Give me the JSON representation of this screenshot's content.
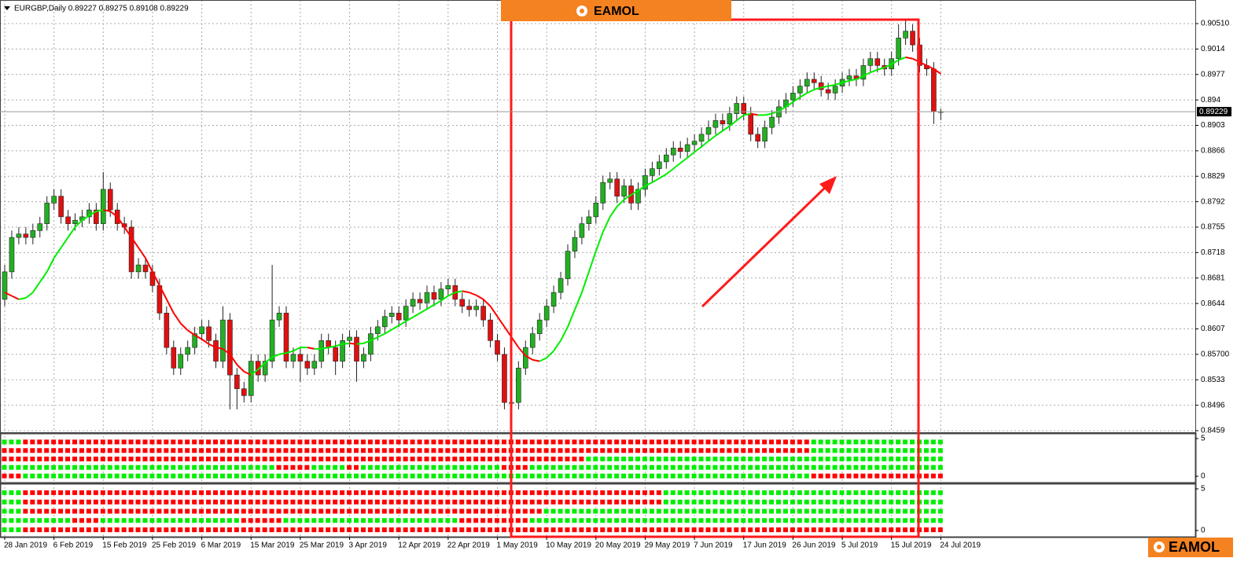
{
  "chart_data": {
    "type": "candlestick",
    "title": "EURGBP,Daily 0.89227 0.89275 0.89108 0.89229",
    "logo_top": "EAMOL",
    "logo_bottom": "EAMOL",
    "categories": [
      "28 Jan 2019",
      null,
      null,
      null,
      null,
      null,
      null,
      "6 Feb 2019",
      null,
      null,
      null,
      null,
      null,
      null,
      "15 Feb 2019",
      null,
      null,
      null,
      null,
      null,
      null,
      "25 Feb 2019",
      null,
      null,
      null,
      null,
      null,
      null,
      "6 Mar 2019",
      null,
      null,
      null,
      null,
      null,
      null,
      "15 Mar 2019",
      null,
      null,
      null,
      null,
      null,
      null,
      "25 Mar 2019",
      null,
      null,
      null,
      null,
      null,
      null,
      "3 Apr 2019",
      null,
      null,
      null,
      null,
      null,
      null,
      "12 Apr 2019",
      null,
      null,
      null,
      null,
      null,
      null,
      "22 Apr 2019",
      null,
      null,
      null,
      null,
      null,
      null,
      "1 May 2019",
      null,
      null,
      null,
      null,
      null,
      null,
      "10 May 2019",
      null,
      null,
      null,
      null,
      null,
      null,
      "20 May 2019",
      null,
      null,
      null,
      null,
      null,
      null,
      "29 May 2019",
      null,
      null,
      null,
      null,
      null,
      null,
      "7 Jun 2019",
      null,
      null,
      null,
      null,
      null,
      null,
      "17 Jun 2019",
      null,
      null,
      null,
      null,
      null,
      null,
      "26 Jun 2019",
      null,
      null,
      null,
      null,
      null,
      null,
      "5 Jul 2019",
      null,
      null,
      null,
      null,
      null,
      null,
      "15 Jul 2019",
      null,
      null,
      null,
      null,
      null,
      null,
      "24 Jul 2019"
    ],
    "open": [
      0.865,
      0.869,
      0.874,
      0.8745,
      0.874,
      0.875,
      0.876,
      0.879,
      0.88,
      0.877,
      0.876,
      0.8765,
      0.877,
      0.878,
      0.876,
      0.881,
      0.878,
      0.876,
      0.8755,
      0.869,
      0.87,
      0.869,
      0.867,
      0.863,
      0.858,
      0.855,
      0.857,
      0.858,
      0.86,
      0.861,
      0.859,
      0.856,
      0.862,
      0.854,
      0.852,
      0.851,
      0.856,
      0.854,
      0.856,
      0.862,
      0.863,
      0.856,
      0.857,
      0.856,
      0.855,
      0.856,
      0.859,
      0.858,
      0.856,
      0.859,
      0.8595,
      0.856,
      0.857,
      0.86,
      0.861,
      0.8625,
      0.863,
      0.862,
      0.864,
      0.865,
      0.8645,
      0.866,
      0.865,
      0.8665,
      0.867,
      0.865,
      0.864,
      0.8635,
      0.864,
      0.862,
      0.859,
      0.857,
      0.85,
      0.85,
      0.855,
      0.858,
      0.86,
      0.862,
      0.864,
      0.866,
      0.868,
      0.872,
      0.874,
      0.876,
      0.877,
      0.879,
      0.882,
      0.8825,
      0.88,
      0.8815,
      0.879,
      0.881,
      0.883,
      0.884,
      0.885,
      0.886,
      0.887,
      0.8865,
      0.8875,
      0.888,
      0.889,
      0.89,
      0.891,
      0.8905,
      0.892,
      0.8935,
      0.892,
      0.889,
      0.888,
      0.89,
      0.8915,
      0.893,
      0.894,
      0.895,
      0.896,
      0.897,
      0.8965,
      0.8955,
      0.895,
      0.896,
      0.897,
      0.8975,
      0.897,
      0.899,
      0.9,
      0.899,
      0.8985,
      0.9,
      0.903,
      0.904,
      0.902,
      0.899,
      0.8985,
      0.89227
    ],
    "high": [
      0.87,
      0.875,
      0.8755,
      0.8755,
      0.876,
      0.877,
      0.88,
      0.881,
      0.881,
      0.878,
      0.8775,
      0.878,
      0.879,
      0.879,
      0.8835,
      0.882,
      0.879,
      0.877,
      0.8765,
      0.871,
      0.871,
      0.87,
      0.868,
      0.864,
      0.859,
      0.858,
      0.859,
      0.861,
      0.862,
      0.862,
      0.86,
      0.864,
      0.863,
      0.855,
      0.853,
      0.857,
      0.857,
      0.857,
      0.87,
      0.864,
      0.864,
      0.858,
      0.858,
      0.857,
      0.857,
      0.86,
      0.86,
      0.859,
      0.86,
      0.8605,
      0.8605,
      0.858,
      0.861,
      0.862,
      0.8635,
      0.864,
      0.864,
      0.865,
      0.866,
      0.866,
      0.867,
      0.867,
      0.8675,
      0.868,
      0.868,
      0.866,
      0.865,
      0.865,
      0.865,
      0.863,
      0.86,
      0.858,
      0.851,
      0.856,
      0.859,
      0.861,
      0.863,
      0.865,
      0.867,
      0.869,
      0.873,
      0.875,
      0.877,
      0.878,
      0.88,
      0.883,
      0.8835,
      0.8835,
      0.8825,
      0.8825,
      0.882,
      0.884,
      0.885,
      0.886,
      0.887,
      0.888,
      0.888,
      0.8885,
      0.889,
      0.89,
      0.891,
      0.892,
      0.892,
      0.893,
      0.8945,
      0.8945,
      0.893,
      0.89,
      0.891,
      0.8925,
      0.894,
      0.895,
      0.896,
      0.897,
      0.898,
      0.898,
      0.8975,
      0.8965,
      0.897,
      0.898,
      0.8985,
      0.8985,
      0.9,
      0.901,
      0.901,
      0.9,
      0.901,
      0.905,
      0.9055,
      0.905,
      0.903,
      0.9,
      0.8995,
      0.89275
    ],
    "low": [
      0.864,
      0.868,
      0.873,
      0.873,
      0.873,
      0.874,
      0.875,
      0.878,
      0.876,
      0.875,
      0.875,
      0.8755,
      0.876,
      0.875,
      0.875,
      0.877,
      0.875,
      0.8745,
      0.868,
      0.868,
      0.868,
      0.866,
      0.862,
      0.857,
      0.854,
      0.854,
      0.856,
      0.857,
      0.859,
      0.858,
      0.855,
      0.855,
      0.849,
      0.849,
      0.85,
      0.85,
      0.853,
      0.853,
      0.855,
      0.861,
      0.855,
      0.855,
      0.853,
      0.854,
      0.854,
      0.855,
      0.857,
      0.854,
      0.855,
      0.858,
      0.853,
      0.855,
      0.856,
      0.859,
      0.86,
      0.8615,
      0.861,
      0.861,
      0.863,
      0.8635,
      0.8635,
      0.864,
      0.864,
      0.8655,
      0.864,
      0.863,
      0.8625,
      0.8625,
      0.861,
      0.858,
      0.856,
      0.849,
      0.849,
      0.849,
      0.854,
      0.857,
      0.859,
      0.861,
      0.863,
      0.865,
      0.867,
      0.871,
      0.873,
      0.875,
      0.876,
      0.878,
      0.881,
      0.879,
      0.879,
      0.878,
      0.878,
      0.88,
      0.882,
      0.883,
      0.884,
      0.885,
      0.8855,
      0.8855,
      0.8865,
      0.887,
      0.888,
      0.889,
      0.8895,
      0.8895,
      0.891,
      0.891,
      0.888,
      0.887,
      0.887,
      0.889,
      0.8905,
      0.892,
      0.893,
      0.894,
      0.895,
      0.8955,
      0.8945,
      0.894,
      0.894,
      0.895,
      0.896,
      0.896,
      0.896,
      0.898,
      0.898,
      0.8975,
      0.8975,
      0.899,
      0.902,
      0.901,
      0.898,
      0.8975,
      0.8905,
      0.89108
    ],
    "close": [
      0.869,
      0.874,
      0.8745,
      0.874,
      0.875,
      0.876,
      0.879,
      0.88,
      0.877,
      0.876,
      0.8765,
      0.877,
      0.878,
      0.876,
      0.881,
      0.878,
      0.876,
      0.8755,
      0.869,
      0.87,
      0.869,
      0.867,
      0.863,
      0.858,
      0.855,
      0.857,
      0.858,
      0.86,
      0.861,
      0.859,
      0.856,
      0.862,
      0.854,
      0.852,
      0.851,
      0.856,
      0.854,
      0.856,
      0.862,
      0.863,
      0.856,
      0.857,
      0.856,
      0.855,
      0.856,
      0.859,
      0.858,
      0.856,
      0.859,
      0.8595,
      0.856,
      0.857,
      0.86,
      0.861,
      0.8625,
      0.863,
      0.862,
      0.864,
      0.865,
      0.8645,
      0.866,
      0.865,
      0.8665,
      0.867,
      0.865,
      0.864,
      0.8635,
      0.864,
      0.862,
      0.859,
      0.857,
      0.85,
      0.85,
      0.855,
      0.858,
      0.86,
      0.862,
      0.864,
      0.866,
      0.868,
      0.872,
      0.874,
      0.876,
      0.877,
      0.879,
      0.882,
      0.8825,
      0.88,
      0.8815,
      0.879,
      0.881,
      0.883,
      0.884,
      0.885,
      0.886,
      0.887,
      0.8865,
      0.8875,
      0.888,
      0.889,
      0.89,
      0.891,
      0.8905,
      0.892,
      0.8935,
      0.892,
      0.889,
      0.888,
      0.89,
      0.8915,
      0.893,
      0.894,
      0.895,
      0.896,
      0.897,
      0.8965,
      0.8955,
      0.895,
      0.896,
      0.897,
      0.8975,
      0.897,
      0.899,
      0.9,
      0.899,
      0.8985,
      0.9,
      0.903,
      0.904,
      0.902,
      0.899,
      0.8985,
      0.8923,
      0.89229
    ],
    "bull_color": "#22b022",
    "bear_color": "#e01010",
    "ma": {
      "up_color": "#00ee00",
      "down_color": "#ff0000",
      "values": [
        0.866,
        0.8655,
        0.865,
        0.8652,
        0.866,
        0.8675,
        0.869,
        0.871,
        0.8725,
        0.874,
        0.8755,
        0.8765,
        0.8772,
        0.8778,
        0.878,
        0.8778,
        0.877,
        0.8755,
        0.874,
        0.8725,
        0.871,
        0.869,
        0.867,
        0.865,
        0.863,
        0.8615,
        0.8605,
        0.8598,
        0.8592,
        0.8585,
        0.858,
        0.8578,
        0.857,
        0.8555,
        0.8545,
        0.854,
        0.8548,
        0.8558,
        0.8566,
        0.857,
        0.8572,
        0.8575,
        0.858,
        0.858,
        0.8578,
        0.8578,
        0.858,
        0.8582,
        0.8585,
        0.8586,
        0.8585,
        0.8586,
        0.859,
        0.8595,
        0.86,
        0.8606,
        0.8612,
        0.8618,
        0.8624,
        0.863,
        0.8636,
        0.8642,
        0.8648,
        0.8655,
        0.866,
        0.8662,
        0.866,
        0.8656,
        0.865,
        0.864,
        0.8625,
        0.861,
        0.8595,
        0.858,
        0.8568,
        0.8562,
        0.856,
        0.8565,
        0.8575,
        0.859,
        0.861,
        0.8635,
        0.866,
        0.869,
        0.872,
        0.8748,
        0.877,
        0.8785,
        0.8795,
        0.8802,
        0.8808,
        0.8815,
        0.882,
        0.8826,
        0.8832,
        0.884,
        0.8848,
        0.8856,
        0.8864,
        0.8872,
        0.888,
        0.8888,
        0.8895,
        0.8902,
        0.891,
        0.8918,
        0.892,
        0.8918,
        0.8918,
        0.892,
        0.8924,
        0.893,
        0.8937,
        0.8944,
        0.895,
        0.8955,
        0.8958,
        0.896,
        0.8962,
        0.8965,
        0.8968,
        0.897,
        0.8975,
        0.898,
        0.8984,
        0.8987,
        0.8992,
        0.8998,
        0.9002,
        0.9,
        0.8995,
        0.899,
        0.8985,
        0.8978
      ]
    },
    "ylim": [
      0.84567,
      0.90853
    ],
    "yticks": [
      {
        "value": 0.9051,
        "label": "0.90510"
      },
      0.9014,
      0.8977,
      0.894,
      0.8903,
      0.8866,
      0.8829,
      0.8792,
      0.8755,
      0.8718,
      0.8681,
      0.8644,
      0.8607,
      {
        "value": 0.857,
        "label": "0.85700"
      },
      0.8533,
      0.8496,
      0.8459
    ],
    "current_price": 0.89229,
    "grid": true,
    "panels": [
      {
        "ylim": [
          0,
          5
        ],
        "yticks": [
          0,
          5
        ],
        "rows": [
          [
            {
              "color": "#00ee00",
              "count": 3
            },
            {
              "color": "#ff0000",
              "count": 112
            },
            {
              "color": "#00ee00",
              "count": 19
            }
          ],
          [
            {
              "color": "#ff0000",
              "count": 115
            },
            {
              "color": "#00ee00",
              "count": 19
            }
          ],
          [
            {
              "color": "#ff0000",
              "count": 83
            },
            {
              "color": "#00ee00",
              "count": 51
            }
          ],
          [
            {
              "color": "#00ee00",
              "count": 39
            },
            {
              "color": "#ff0000",
              "count": 5
            },
            {
              "color": "#00ee00",
              "count": 5
            },
            {
              "color": "#ff0000",
              "count": 2
            },
            {
              "color": "#00ee00",
              "count": 20
            },
            {
              "color": "#ff0000",
              "count": 4
            },
            {
              "color": "#00ee00",
              "count": 59
            }
          ],
          [
            {
              "color": "#ff0000",
              "count": 3
            },
            {
              "color": "#00ee00",
              "count": 112
            },
            {
              "color": "#ff0000",
              "count": 19
            }
          ]
        ]
      },
      {
        "ylim": [
          0,
          5
        ],
        "yticks": [
          0,
          5
        ],
        "rows": [
          [
            {
              "color": "#00ee00",
              "count": 3
            },
            {
              "color": "#ff0000",
              "count": 91
            },
            {
              "color": "#00ee00",
              "count": 40
            }
          ],
          [
            {
              "color": "#00ee00",
              "count": 3
            },
            {
              "color": "#ff0000",
              "count": 91
            },
            {
              "color": "#00ee00",
              "count": 40
            }
          ],
          [
            {
              "color": "#00ee00",
              "count": 3
            },
            {
              "color": "#ff0000",
              "count": 74
            },
            {
              "color": "#00ee00",
              "count": 57
            }
          ],
          [
            {
              "color": "#00ee00",
              "count": 10
            },
            {
              "color": "#ff0000",
              "count": 4
            },
            {
              "color": "#00ee00",
              "count": 20
            },
            {
              "color": "#ff0000",
              "count": 6
            },
            {
              "color": "#00ee00",
              "count": 25
            },
            {
              "color": "#ff0000",
              "count": 10
            },
            {
              "color": "#00ee00",
              "count": 59
            }
          ],
          [
            {
              "color": "#00ee00",
              "count": 3
            },
            {
              "color": "#ff0000",
              "count": 131
            }
          ]
        ]
      }
    ]
  }
}
